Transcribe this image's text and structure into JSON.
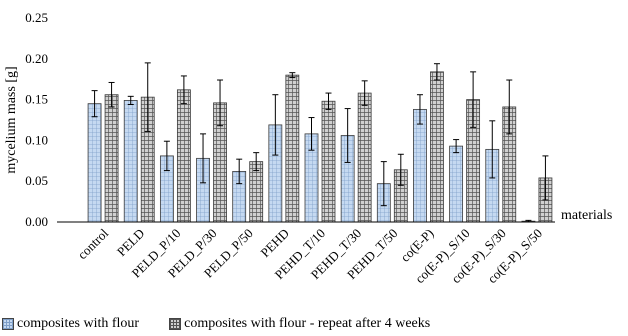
{
  "chart_data": {
    "type": "bar",
    "title": "",
    "ylabel": "mycelium mass [g]",
    "xlabel": "materials",
    "ylim": [
      0,
      0.25
    ],
    "yticks": [
      "0.00",
      "0.05",
      "0.10",
      "0.15",
      "0.20",
      "0.25"
    ],
    "grid": false,
    "legend_position": "bottom",
    "categories": [
      "control",
      "PELD",
      "PELD_P/10",
      "PELD_P/30",
      "PELD_P/50",
      "PEHD",
      "PEHD_T/10",
      "PEHD_T/30",
      "PEHD_T/50",
      "co(E-P)",
      "co(E-P)_S/10",
      "co(E-P)_S/30",
      "co(E-P)_S/50"
    ],
    "series": [
      {
        "name": "composites with flour",
        "pattern": "light-blue-grid",
        "color": "#c5d9f1",
        "values": [
          0.145,
          0.149,
          0.081,
          0.078,
          0.062,
          0.119,
          0.108,
          0.106,
          0.047,
          0.138,
          0.093,
          0.089,
          0.001
        ],
        "errors": [
          0.016,
          0.005,
          0.018,
          0.03,
          0.015,
          0.037,
          0.02,
          0.033,
          0.027,
          0.018,
          0.008,
          0.035,
          0.001
        ]
      },
      {
        "name": "composites with flour - repeat after 4 weeks",
        "pattern": "dark-gray-crosshatch",
        "color": "#8c8c8c",
        "values": [
          0.156,
          0.153,
          0.162,
          0.146,
          0.074,
          0.18,
          0.148,
          0.158,
          0.064,
          0.184,
          0.15,
          0.141,
          0.054
        ],
        "errors": [
          0.015,
          0.042,
          0.017,
          0.028,
          0.011,
          0.003,
          0.01,
          0.015,
          0.019,
          0.01,
          0.034,
          0.033,
          0.027
        ]
      }
    ]
  }
}
